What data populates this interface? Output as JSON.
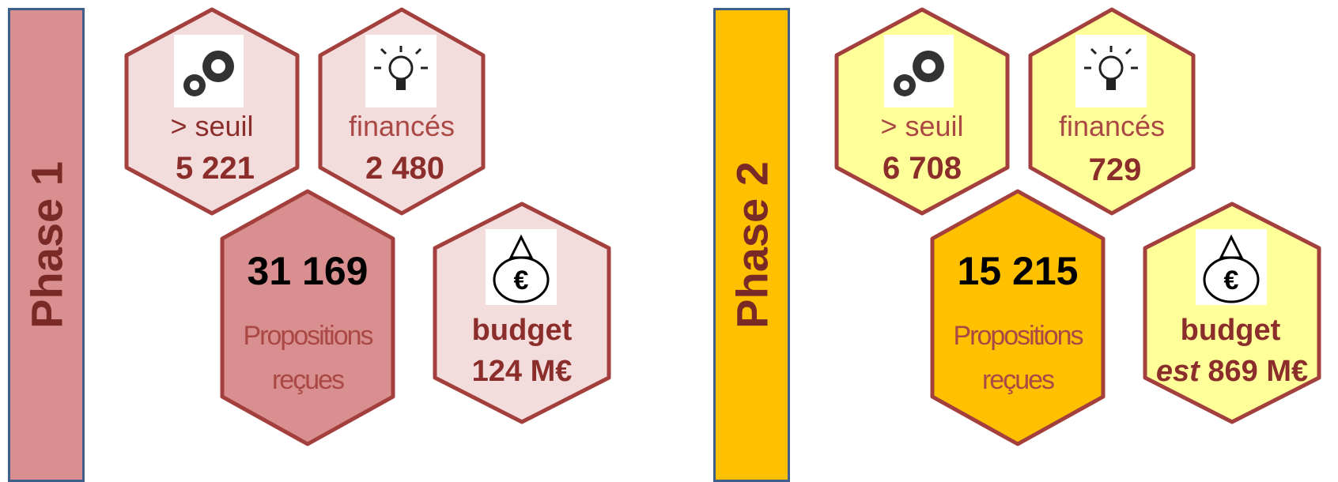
{
  "phases": [
    {
      "label": "Phase 1",
      "colors": {
        "bar": "#d98f8f",
        "hex_light": "#f2dcdc",
        "hex_center": "#d98f8f"
      },
      "seuil": {
        "label": "> seuil",
        "value": "5 221",
        "icon": "gears-icon"
      },
      "finances": {
        "label": "financés",
        "value": "2 480",
        "icon": "lightbulb-icon"
      },
      "propositions": {
        "value": "31 169",
        "line1": "Propositions",
        "line2": "reçues"
      },
      "budget": {
        "label": "budget",
        "prefix": "",
        "value": "124 M€",
        "icon": "money-bag-icon"
      }
    },
    {
      "label": "Phase 2",
      "colors": {
        "bar": "#ffc000",
        "hex_light": "#ffff99",
        "hex_center": "#ffc000"
      },
      "seuil": {
        "label": "> seuil",
        "value": "6 708",
        "icon": "gears-icon"
      },
      "finances": {
        "label": "financés",
        "value": "729",
        "icon": "lightbulb-icon"
      },
      "propositions": {
        "value": "15 215",
        "line1": "Propositions",
        "line2": "reçues"
      },
      "budget": {
        "label": "budget",
        "prefix": "est",
        "value": "869  M€",
        "icon": "money-bag-icon"
      }
    }
  ]
}
